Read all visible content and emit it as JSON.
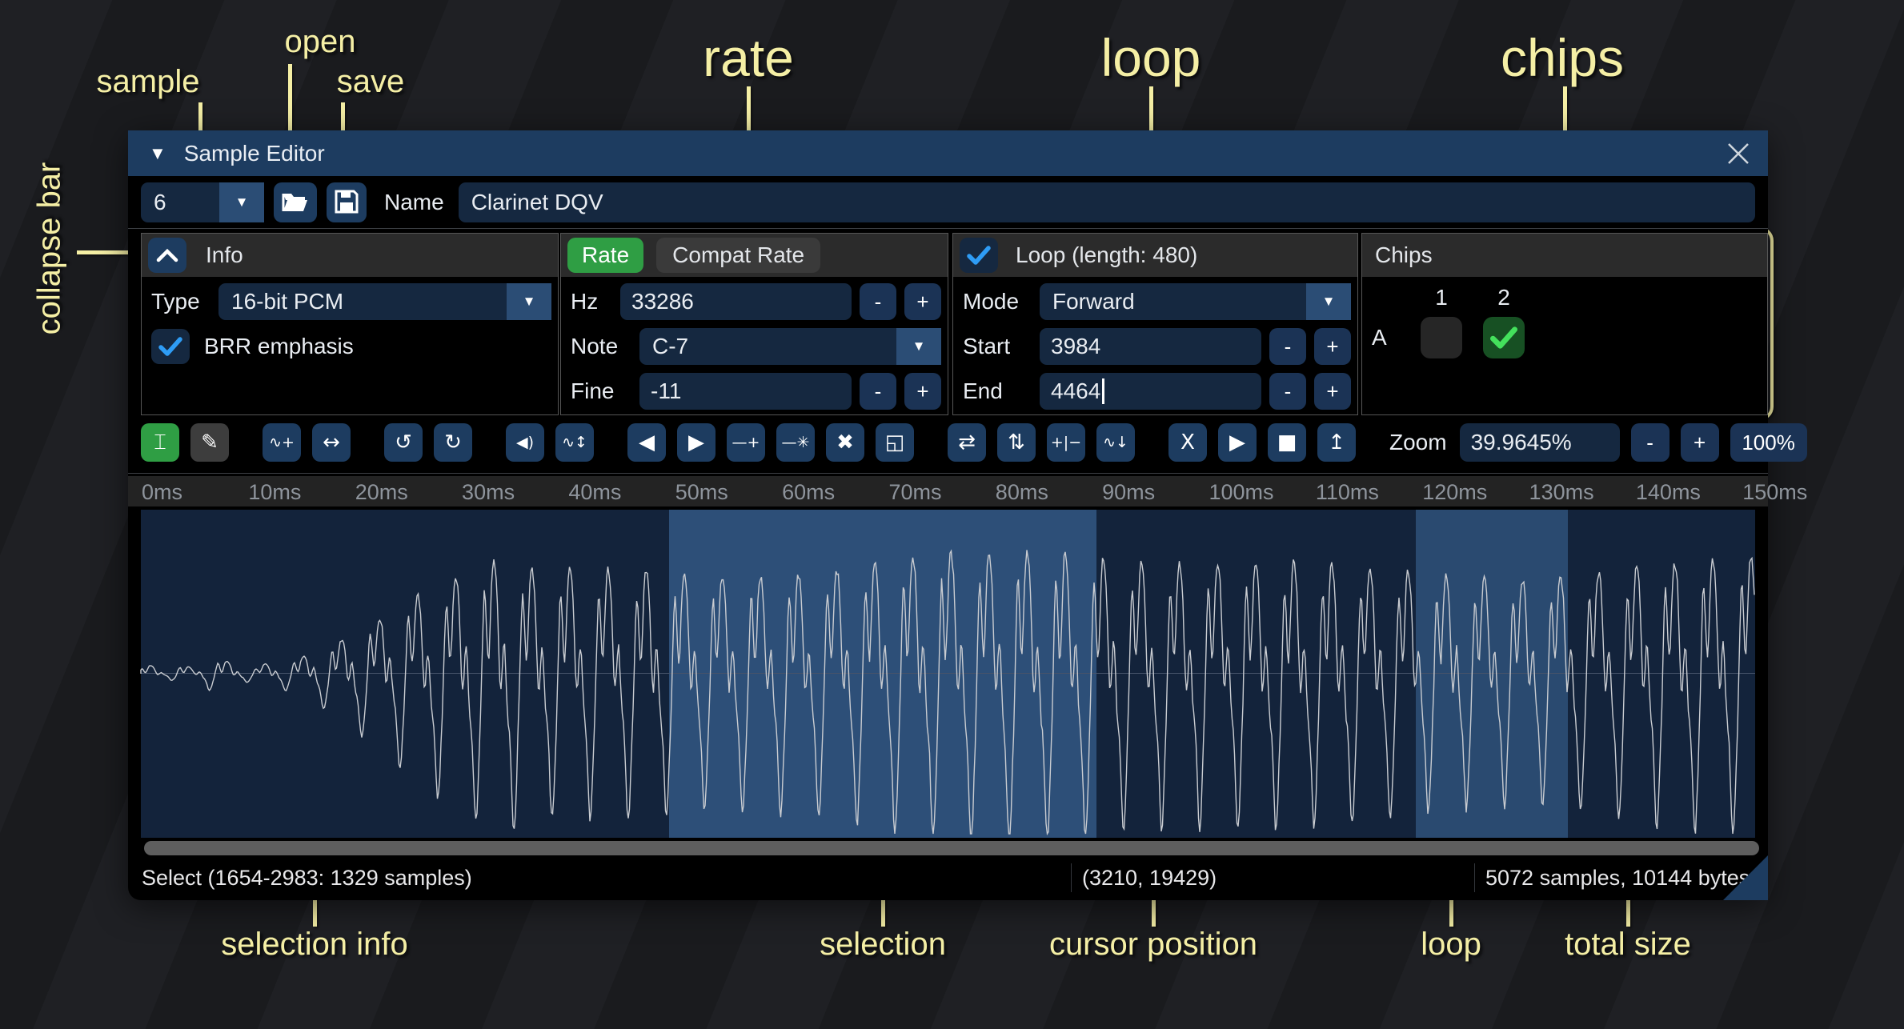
{
  "annotations": {
    "color": "#f5efa5",
    "sample": "sample",
    "open": "open",
    "save": "save",
    "rate": "rate",
    "loop": "loop",
    "chips": "chips",
    "collapse_bar": "collapse bar",
    "selection_info": "selection info",
    "selection": "selection",
    "cursor_position": "cursor position",
    "loop_bottom": "loop",
    "total_size": "total size"
  },
  "window": {
    "title": "Sample Editor"
  },
  "controls": {
    "sample_number": "6",
    "name_label": "Name",
    "name_value": "Clarinet DQV"
  },
  "info_panel": {
    "title": "Info",
    "type_label": "Type",
    "type_value": "16-bit PCM",
    "brr_label": "BRR emphasis",
    "brr_checked": true
  },
  "rate_panel": {
    "rate_button": "Rate",
    "compat_button": "Compat Rate",
    "hz_label": "Hz",
    "hz_value": "33286",
    "note_label": "Note",
    "note_value": "C-7",
    "fine_label": "Fine",
    "fine_value": "-11",
    "minus": "-",
    "plus": "+"
  },
  "loop_panel": {
    "title": "Loop (length: 480)",
    "enabled": true,
    "mode_label": "Mode",
    "mode_value": "Forward",
    "start_label": "Start",
    "start_value": "3984",
    "end_label": "End",
    "end_value": "4464"
  },
  "chips_panel": {
    "title": "Chips",
    "columns": [
      "1",
      "2"
    ],
    "rows": [
      {
        "label": "A",
        "checks": [
          false,
          true
        ]
      }
    ],
    "check_green": "#44e05c",
    "check_blue": "#2e9cf5"
  },
  "toolbar": {
    "groups": [
      [
        {
          "name": "select-tool",
          "glyph": "⌶",
          "style": "active-green"
        },
        {
          "name": "draw-tool",
          "glyph": "✎",
          "style": "gray"
        }
      ],
      [
        {
          "name": "amplify-tool",
          "glyph": "∿+"
        },
        {
          "name": "stretch-tool",
          "glyph": "↔"
        }
      ],
      [
        {
          "name": "undo",
          "glyph": "↺"
        },
        {
          "name": "redo",
          "glyph": "↻"
        }
      ],
      [
        {
          "name": "volume",
          "glyph": "◀)"
        },
        {
          "name": "normalize",
          "glyph": "∿↕"
        }
      ],
      [
        {
          "name": "fade-in",
          "glyph": "◀"
        },
        {
          "name": "fade-out",
          "glyph": "▶"
        },
        {
          "name": "insert-silence",
          "glyph": "—+"
        },
        {
          "name": "dc-offset",
          "glyph": "—✳"
        },
        {
          "name": "delete-selection",
          "glyph": "✖"
        },
        {
          "name": "trim",
          "glyph": "◱"
        }
      ],
      [
        {
          "name": "reverse",
          "glyph": "⇄"
        },
        {
          "name": "shift",
          "glyph": "⇅"
        },
        {
          "name": "adjust-levels",
          "glyph": "+|−"
        },
        {
          "name": "filter",
          "glyph": "∿↓"
        }
      ],
      [
        {
          "name": "crossfade",
          "glyph": "X"
        },
        {
          "name": "play-preview",
          "glyph": "▶"
        },
        {
          "name": "stop-preview",
          "glyph": "■"
        },
        {
          "name": "export-sample",
          "glyph": "↥"
        }
      ]
    ],
    "zoom_label": "Zoom",
    "zoom_value": "39.9645%",
    "zoom_out": "-",
    "zoom_in": "+",
    "zoom_reset": "100%"
  },
  "ruler": {
    "ticks": [
      "0ms",
      "10ms",
      "20ms",
      "30ms",
      "40ms",
      "50ms",
      "60ms",
      "70ms",
      "80ms",
      "90ms",
      "100ms",
      "110ms",
      "120ms",
      "130ms",
      "140ms",
      "150ms"
    ],
    "tick_spacing_px": 133.35
  },
  "waveform": {
    "selection": {
      "start_pct": 32.7,
      "end_pct": 59.2
    },
    "loop": {
      "start_pct": 79.0,
      "end_pct": 88.4
    }
  },
  "status_bar": {
    "selection": "Select (1654-2983: 1329 samples)",
    "cursor": "(3210, 19429)",
    "size": "5072 samples, 10144 bytes"
  }
}
